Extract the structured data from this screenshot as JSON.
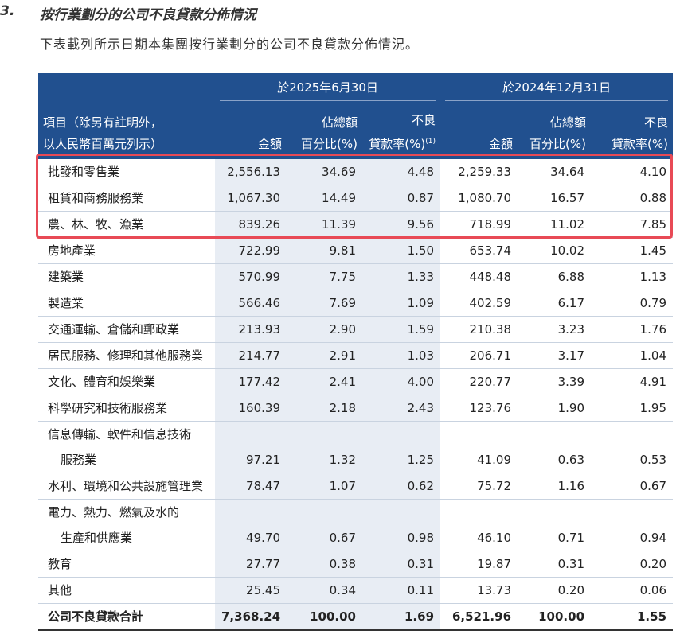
{
  "section": {
    "number": "3.",
    "title": "按行業劃分的公司不良貸款分佈情況",
    "intro": "下表載列所示日期本集團按行業劃分的公司不良貸款分佈情況。"
  },
  "table": {
    "groups": [
      "於2025年6月30日",
      "於2024年12月31日"
    ],
    "item_header": [
      "項目（除另有註明外，",
      "以人民幣百萬元列示）"
    ],
    "columns": [
      {
        "lines": [
          "金額"
        ]
      },
      {
        "lines": [
          "佔總額",
          "百分比(%)"
        ]
      },
      {
        "lines": [
          "不良",
          "貸款率(%)"
        ],
        "note": "(1)"
      },
      {
        "lines": [
          "金額"
        ]
      },
      {
        "lines": [
          "佔總額",
          "百分比(%)"
        ]
      },
      {
        "lines": [
          "不良",
          "貸款率(%)"
        ]
      }
    ],
    "rows": [
      {
        "label": [
          "批發和零售業"
        ],
        "values": [
          "2,556.13",
          "34.69",
          "4.48",
          "2,259.33",
          "34.64",
          "4.10"
        ]
      },
      {
        "label": [
          "租賃和商務服務業"
        ],
        "values": [
          "1,067.30",
          "14.49",
          "0.87",
          "1,080.70",
          "16.57",
          "0.88"
        ]
      },
      {
        "label": [
          "農、林、牧、漁業"
        ],
        "values": [
          "839.26",
          "11.39",
          "9.56",
          "718.99",
          "11.02",
          "7.85"
        ]
      },
      {
        "label": [
          "房地產業"
        ],
        "values": [
          "722.99",
          "9.81",
          "1.50",
          "653.74",
          "10.02",
          "1.45"
        ]
      },
      {
        "label": [
          "建築業"
        ],
        "values": [
          "570.99",
          "7.75",
          "1.33",
          "448.48",
          "6.88",
          "1.13"
        ]
      },
      {
        "label": [
          "製造業"
        ],
        "values": [
          "566.46",
          "7.69",
          "1.09",
          "402.59",
          "6.17",
          "0.79"
        ]
      },
      {
        "label": [
          "交通運輸、倉儲和郵政業"
        ],
        "values": [
          "213.93",
          "2.90",
          "1.59",
          "210.38",
          "3.23",
          "1.76"
        ]
      },
      {
        "label": [
          "居民服務、修理和其他服務業"
        ],
        "values": [
          "214.77",
          "2.91",
          "1.03",
          "206.71",
          "3.17",
          "1.04"
        ]
      },
      {
        "label": [
          "文化、體育和娛樂業"
        ],
        "values": [
          "177.42",
          "2.41",
          "4.00",
          "220.77",
          "3.39",
          "4.91"
        ]
      },
      {
        "label": [
          "科學研究和技術服務業"
        ],
        "values": [
          "160.39",
          "2.18",
          "2.43",
          "123.76",
          "1.90",
          "1.95"
        ]
      },
      {
        "label": [
          "信息傳輸、軟件和信息技術",
          "服務業"
        ],
        "values": [
          "97.21",
          "1.32",
          "1.25",
          "41.09",
          "0.63",
          "0.53"
        ]
      },
      {
        "label": [
          "水利、環境和公共設施管理業"
        ],
        "values": [
          "78.47",
          "1.07",
          "0.62",
          "75.72",
          "1.16",
          "0.67"
        ]
      },
      {
        "label": [
          "電力、熱力、燃氣及水的",
          "生產和供應業"
        ],
        "values": [
          "49.70",
          "0.67",
          "0.98",
          "46.10",
          "0.71",
          "0.94"
        ]
      },
      {
        "label": [
          "教育"
        ],
        "values": [
          "27.77",
          "0.38",
          "0.31",
          "19.87",
          "0.31",
          "0.20"
        ]
      },
      {
        "label": [
          "其他"
        ],
        "values": [
          "25.45",
          "0.34",
          "0.11",
          "13.73",
          "0.20",
          "0.06"
        ]
      }
    ],
    "total": {
      "label": [
        "公司不良貸款合計"
      ],
      "values": [
        "7,368.24",
        "100.00",
        "1.69",
        "6,521.96",
        "100.00",
        "1.55"
      ]
    }
  }
}
